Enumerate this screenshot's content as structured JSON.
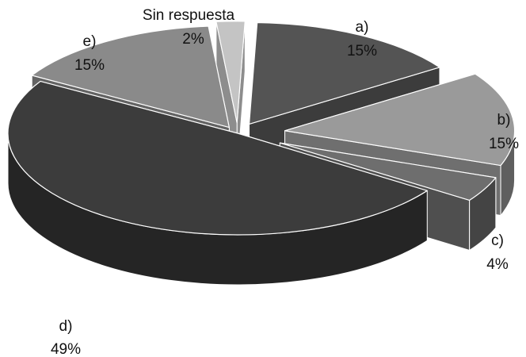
{
  "chart_data": {
    "type": "pie",
    "style": "3d-exploded",
    "title": "",
    "slices": [
      {
        "label": "a)",
        "value": 15,
        "value_label": "15%",
        "color": "#545454"
      },
      {
        "label": "b)",
        "value": 15,
        "value_label": "15%",
        "color": "#9a9a9a"
      },
      {
        "label": "c)",
        "value": 4,
        "value_label": "4%",
        "color": "#6e6e6e"
      },
      {
        "label": "d)",
        "value": 49,
        "value_label": "49%",
        "color": "#3c3c3c"
      },
      {
        "label": "e)",
        "value": 15,
        "value_label": "15%",
        "color": "#8a8a8a"
      },
      {
        "label": "Sin respuesta",
        "value": 2,
        "value_label": "2%",
        "color": "#c4c4c4"
      }
    ]
  }
}
